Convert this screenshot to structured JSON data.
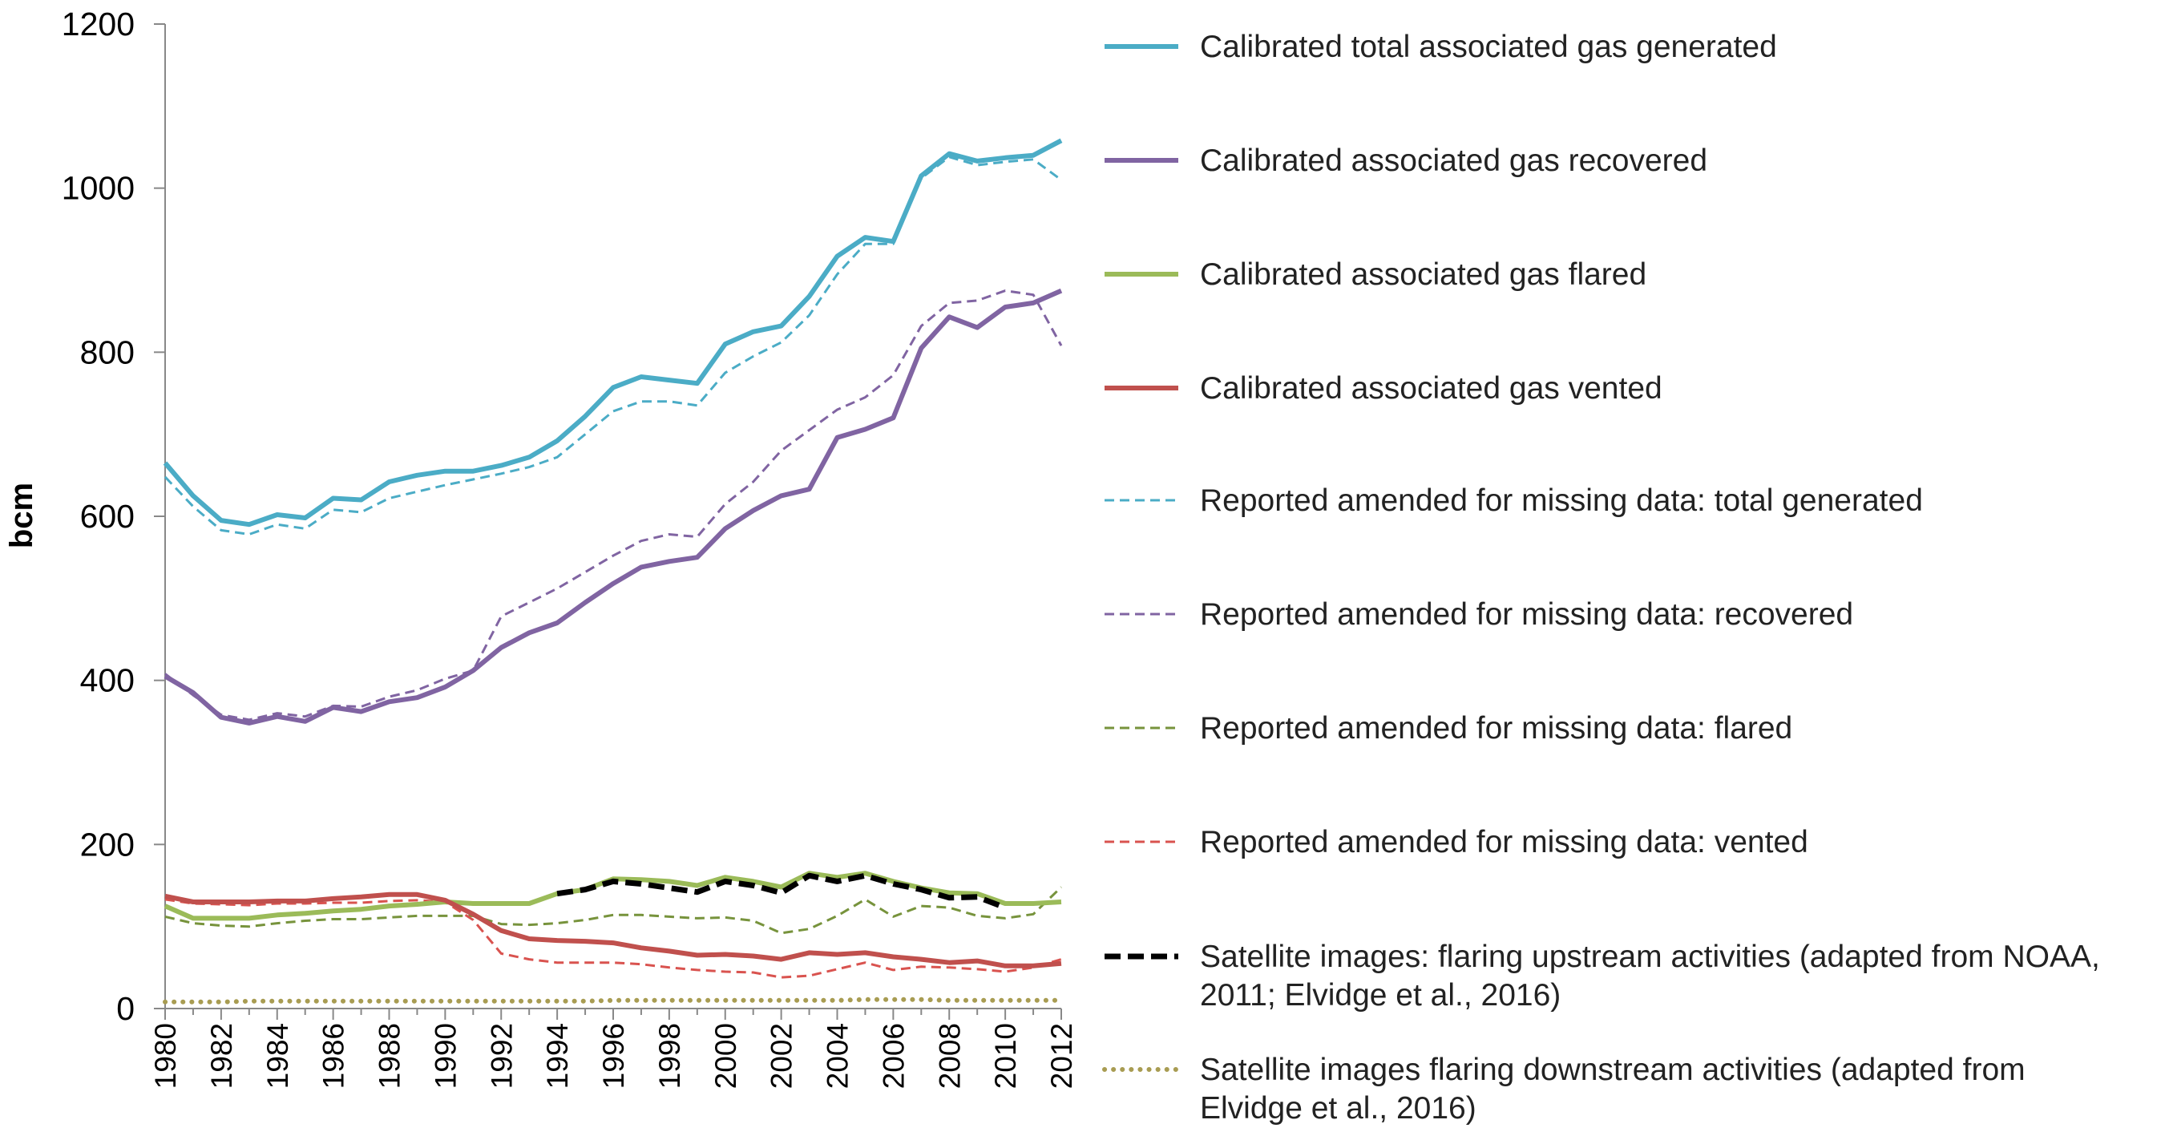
{
  "chart_data": {
    "type": "line",
    "title": "",
    "xlabel": "",
    "ylabel": "bcm",
    "ylim": [
      0,
      1200
    ],
    "yticks": [
      0,
      200,
      400,
      600,
      800,
      1000,
      1200
    ],
    "xlim": [
      1980,
      2012
    ],
    "xticks": [
      1980,
      1982,
      1984,
      1986,
      1988,
      1990,
      1992,
      1994,
      1996,
      1998,
      2000,
      2002,
      2004,
      2006,
      2008,
      2010,
      2012
    ],
    "x": [
      1980,
      1981,
      1982,
      1983,
      1984,
      1985,
      1986,
      1987,
      1988,
      1989,
      1990,
      1991,
      1992,
      1993,
      1994,
      1995,
      1996,
      1997,
      1998,
      1999,
      2000,
      2001,
      2002,
      2003,
      2004,
      2005,
      2006,
      2007,
      2008,
      2009,
      2010,
      2011,
      2012
    ],
    "grid": false,
    "legend_position": "right",
    "series": [
      {
        "name": "Calibrated total associated gas generated",
        "color": "#4bacc6",
        "style": "solid",
        "values": [
          665,
          625,
          595,
          590,
          602,
          598,
          622,
          620,
          642,
          650,
          655,
          655,
          662,
          672,
          692,
          722,
          757,
          770,
          766,
          762,
          810,
          825,
          832,
          868,
          917,
          940,
          935,
          1015,
          1042,
          1033,
          1037,
          1040,
          1058
        ]
      },
      {
        "name": "Calibrated associated gas recovered",
        "color": "#8064a2",
        "style": "solid",
        "values": [
          405,
          385,
          355,
          348,
          356,
          350,
          367,
          362,
          374,
          379,
          392,
          412,
          440,
          458,
          470,
          495,
          518,
          538,
          545,
          550,
          585,
          607,
          625,
          633,
          696,
          706,
          720,
          805,
          843,
          830,
          855,
          860,
          875
        ]
      },
      {
        "name": "Calibrated associated gas flared",
        "color": "#9bbb59",
        "style": "solid",
        "values": [
          125,
          110,
          110,
          110,
          114,
          116,
          119,
          121,
          125,
          127,
          130,
          128,
          128,
          128,
          140,
          145,
          158,
          157,
          155,
          150,
          160,
          155,
          148,
          165,
          160,
          165,
          155,
          147,
          141,
          140,
          128,
          128,
          130
        ]
      },
      {
        "name": "Calibrated associated gas vented",
        "color": "#c0504d",
        "style": "solid",
        "values": [
          137,
          130,
          130,
          130,
          131,
          131,
          134,
          136,
          139,
          139,
          132,
          115,
          95,
          85,
          83,
          82,
          80,
          74,
          70,
          65,
          66,
          64,
          60,
          68,
          66,
          68,
          63,
          60,
          56,
          58,
          52,
          52,
          55
        ]
      },
      {
        "name": "Reported amended for missing data: total generated",
        "color": "#4bacc6",
        "style": "dashed",
        "values": [
          648,
          612,
          583,
          578,
          590,
          585,
          608,
          605,
          622,
          630,
          638,
          645,
          652,
          660,
          672,
          700,
          728,
          740,
          740,
          735,
          775,
          795,
          812,
          845,
          895,
          932,
          932,
          1012,
          1038,
          1028,
          1032,
          1035,
          1010
        ]
      },
      {
        "name": "Reported amended for missing data: recovered",
        "color": "#8064a2",
        "style": "dashed",
        "values": [
          408,
          382,
          358,
          352,
          360,
          356,
          369,
          368,
          380,
          388,
          402,
          412,
          478,
          495,
          512,
          532,
          552,
          570,
          578,
          575,
          615,
          642,
          680,
          705,
          730,
          745,
          772,
          832,
          860,
          863,
          875,
          870,
          808
        ]
      },
      {
        "name": "Reported amended for missing data: flared",
        "color": "#77933c",
        "style": "dashed",
        "values": [
          112,
          104,
          101,
          100,
          104,
          107,
          109,
          109,
          111,
          113,
          113,
          113,
          103,
          102,
          104,
          108,
          114,
          114,
          112,
          110,
          111,
          107,
          92,
          97,
          113,
          133,
          112,
          125,
          123,
          113,
          110,
          115,
          148
        ]
      },
      {
        "name": "Reported amended for missing data: vented",
        "color": "#d9534f",
        "style": "dashed",
        "values": [
          133,
          128,
          127,
          126,
          128,
          128,
          129,
          129,
          131,
          132,
          130,
          108,
          67,
          60,
          56,
          56,
          56,
          54,
          50,
          47,
          45,
          44,
          38,
          40,
          48,
          56,
          47,
          51,
          50,
          48,
          45,
          50,
          60
        ]
      },
      {
        "name": "Satellite images: flaring upstream activities (adapted from NOAA, 2011; Elvidge et al., 2016)",
        "color": "#000000",
        "style": "bold-dashed",
        "x": [
          1994,
          1995,
          1996,
          1997,
          1998,
          1999,
          2000,
          2001,
          2002,
          2003,
          2004,
          2005,
          2006,
          2007,
          2008,
          2009,
          2010
        ],
        "values": [
          140,
          145,
          155,
          152,
          147,
          142,
          155,
          150,
          141,
          162,
          155,
          162,
          152,
          145,
          135,
          136,
          123
        ]
      },
      {
        "name": "Satellite images flaring downstream activities (adapted from Elvidge et al., 2016)",
        "color": "#a89c52",
        "style": "dotted",
        "values": [
          8,
          8,
          8,
          9,
          9,
          9,
          9,
          9,
          9,
          9,
          9,
          9,
          9,
          9,
          9,
          9,
          10,
          10,
          10,
          10,
          10,
          10,
          10,
          10,
          10,
          11,
          11,
          11,
          10,
          10,
          10,
          10,
          10
        ]
      }
    ]
  }
}
